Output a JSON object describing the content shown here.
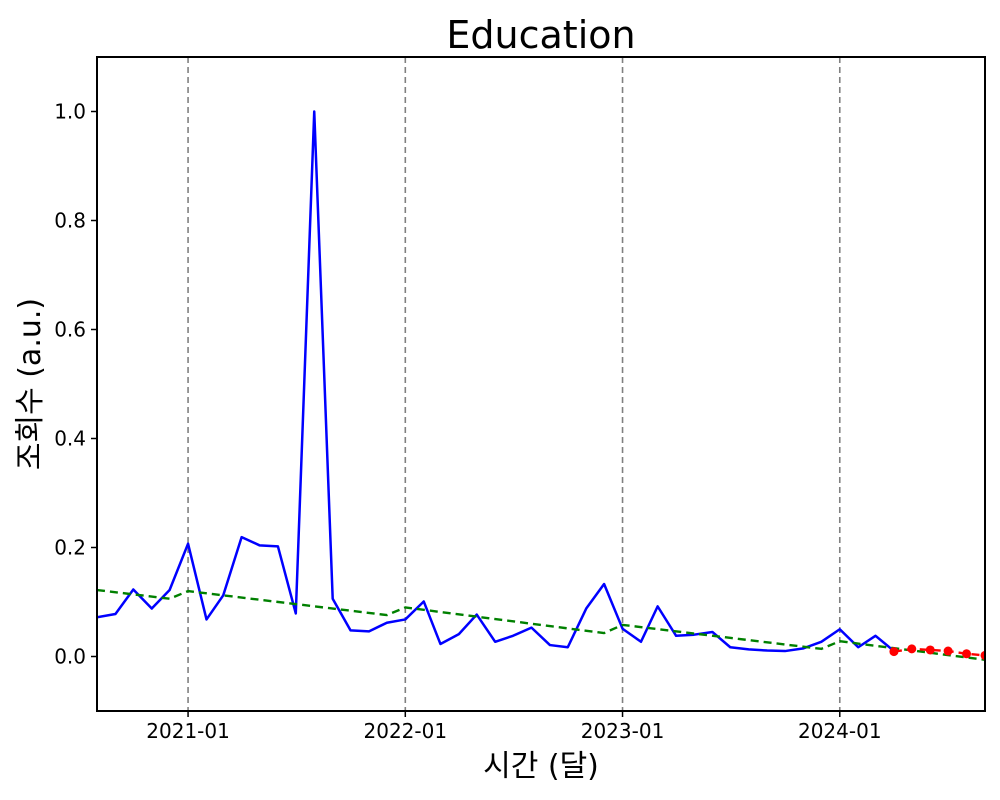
{
  "chart_data": {
    "type": "line",
    "title": "Education",
    "xlabel": "시간 (달)",
    "ylabel": "조회수 (a.u.)",
    "xlim": [
      "2020-08-01",
      "2024-09-01"
    ],
    "ylim": [
      -0.1,
      1.1
    ],
    "x_ticks": [
      "2021-01",
      "2022-01",
      "2023-01",
      "2024-01"
    ],
    "y_ticks": [
      "0.0",
      "0.2",
      "0.4",
      "0.6",
      "0.8",
      "1.0"
    ],
    "year_markers": [
      "2021-01-01",
      "2022-01-01",
      "2023-01-01",
      "2024-01-01"
    ],
    "grid": false,
    "legend": null,
    "series": [
      {
        "style": "solid",
        "color": "#0000ff",
        "points": [
          [
            "2020-08-01",
            0.072
          ],
          [
            "2020-09-01",
            0.078
          ],
          [
            "2020-10-01",
            0.123
          ],
          [
            "2020-11-01",
            0.088
          ],
          [
            "2020-12-01",
            0.122
          ],
          [
            "2021-01-01",
            0.207
          ],
          [
            "2021-02-01",
            0.068
          ],
          [
            "2021-03-01",
            0.112
          ],
          [
            "2021-04-01",
            0.219
          ],
          [
            "2021-05-01",
            0.204
          ],
          [
            "2021-06-01",
            0.202
          ],
          [
            "2021-07-01",
            0.079
          ],
          [
            "2021-08-01",
            1.0
          ],
          [
            "2021-09-01",
            0.106
          ],
          [
            "2021-10-01",
            0.048
          ],
          [
            "2021-11-01",
            0.046
          ],
          [
            "2021-12-01",
            0.062
          ],
          [
            "2022-01-01",
            0.068
          ],
          [
            "2022-02-01",
            0.101
          ],
          [
            "2022-03-01",
            0.023
          ],
          [
            "2022-04-01",
            0.041
          ],
          [
            "2022-05-01",
            0.077
          ],
          [
            "2022-06-01",
            0.027
          ],
          [
            "2022-07-01",
            0.038
          ],
          [
            "2022-08-01",
            0.053
          ],
          [
            "2022-09-01",
            0.021
          ],
          [
            "2022-10-01",
            0.017
          ],
          [
            "2022-11-01",
            0.088
          ],
          [
            "2022-12-01",
            0.133
          ],
          [
            "2023-01-01",
            0.051
          ],
          [
            "2023-02-01",
            0.027
          ],
          [
            "2023-03-01",
            0.092
          ],
          [
            "2023-04-01",
            0.038
          ],
          [
            "2023-05-01",
            0.04
          ],
          [
            "2023-06-01",
            0.045
          ],
          [
            "2023-07-01",
            0.017
          ],
          [
            "2023-08-01",
            0.013
          ],
          [
            "2023-09-01",
            0.011
          ],
          [
            "2023-10-01",
            0.01
          ],
          [
            "2023-11-01",
            0.015
          ],
          [
            "2023-12-01",
            0.027
          ],
          [
            "2024-01-01",
            0.05
          ],
          [
            "2024-02-01",
            0.017
          ],
          [
            "2024-03-01",
            0.038
          ],
          [
            "2024-04-01",
            0.01
          ]
        ]
      },
      {
        "style": "dashed",
        "color": "#008000",
        "points": [
          [
            "2020-08-01",
            0.122
          ],
          [
            "2020-12-01",
            0.106
          ],
          [
            "2021-01-01",
            0.12
          ],
          [
            "2021-12-01",
            0.076
          ],
          [
            "2022-01-01",
            0.09
          ],
          [
            "2022-12-01",
            0.043
          ],
          [
            "2023-01-01",
            0.058
          ],
          [
            "2023-12-01",
            0.014
          ],
          [
            "2024-01-01",
            0.028
          ],
          [
            "2024-09-01",
            -0.006
          ]
        ]
      },
      {
        "style": "dashed-markers",
        "color": "#ff0000",
        "points": [
          [
            "2024-04-01",
            0.009
          ],
          [
            "2024-05-01",
            0.014
          ],
          [
            "2024-06-01",
            0.012
          ],
          [
            "2024-07-01",
            0.01
          ],
          [
            "2024-08-01",
            0.005
          ],
          [
            "2024-09-01",
            0.002
          ]
        ]
      }
    ]
  }
}
